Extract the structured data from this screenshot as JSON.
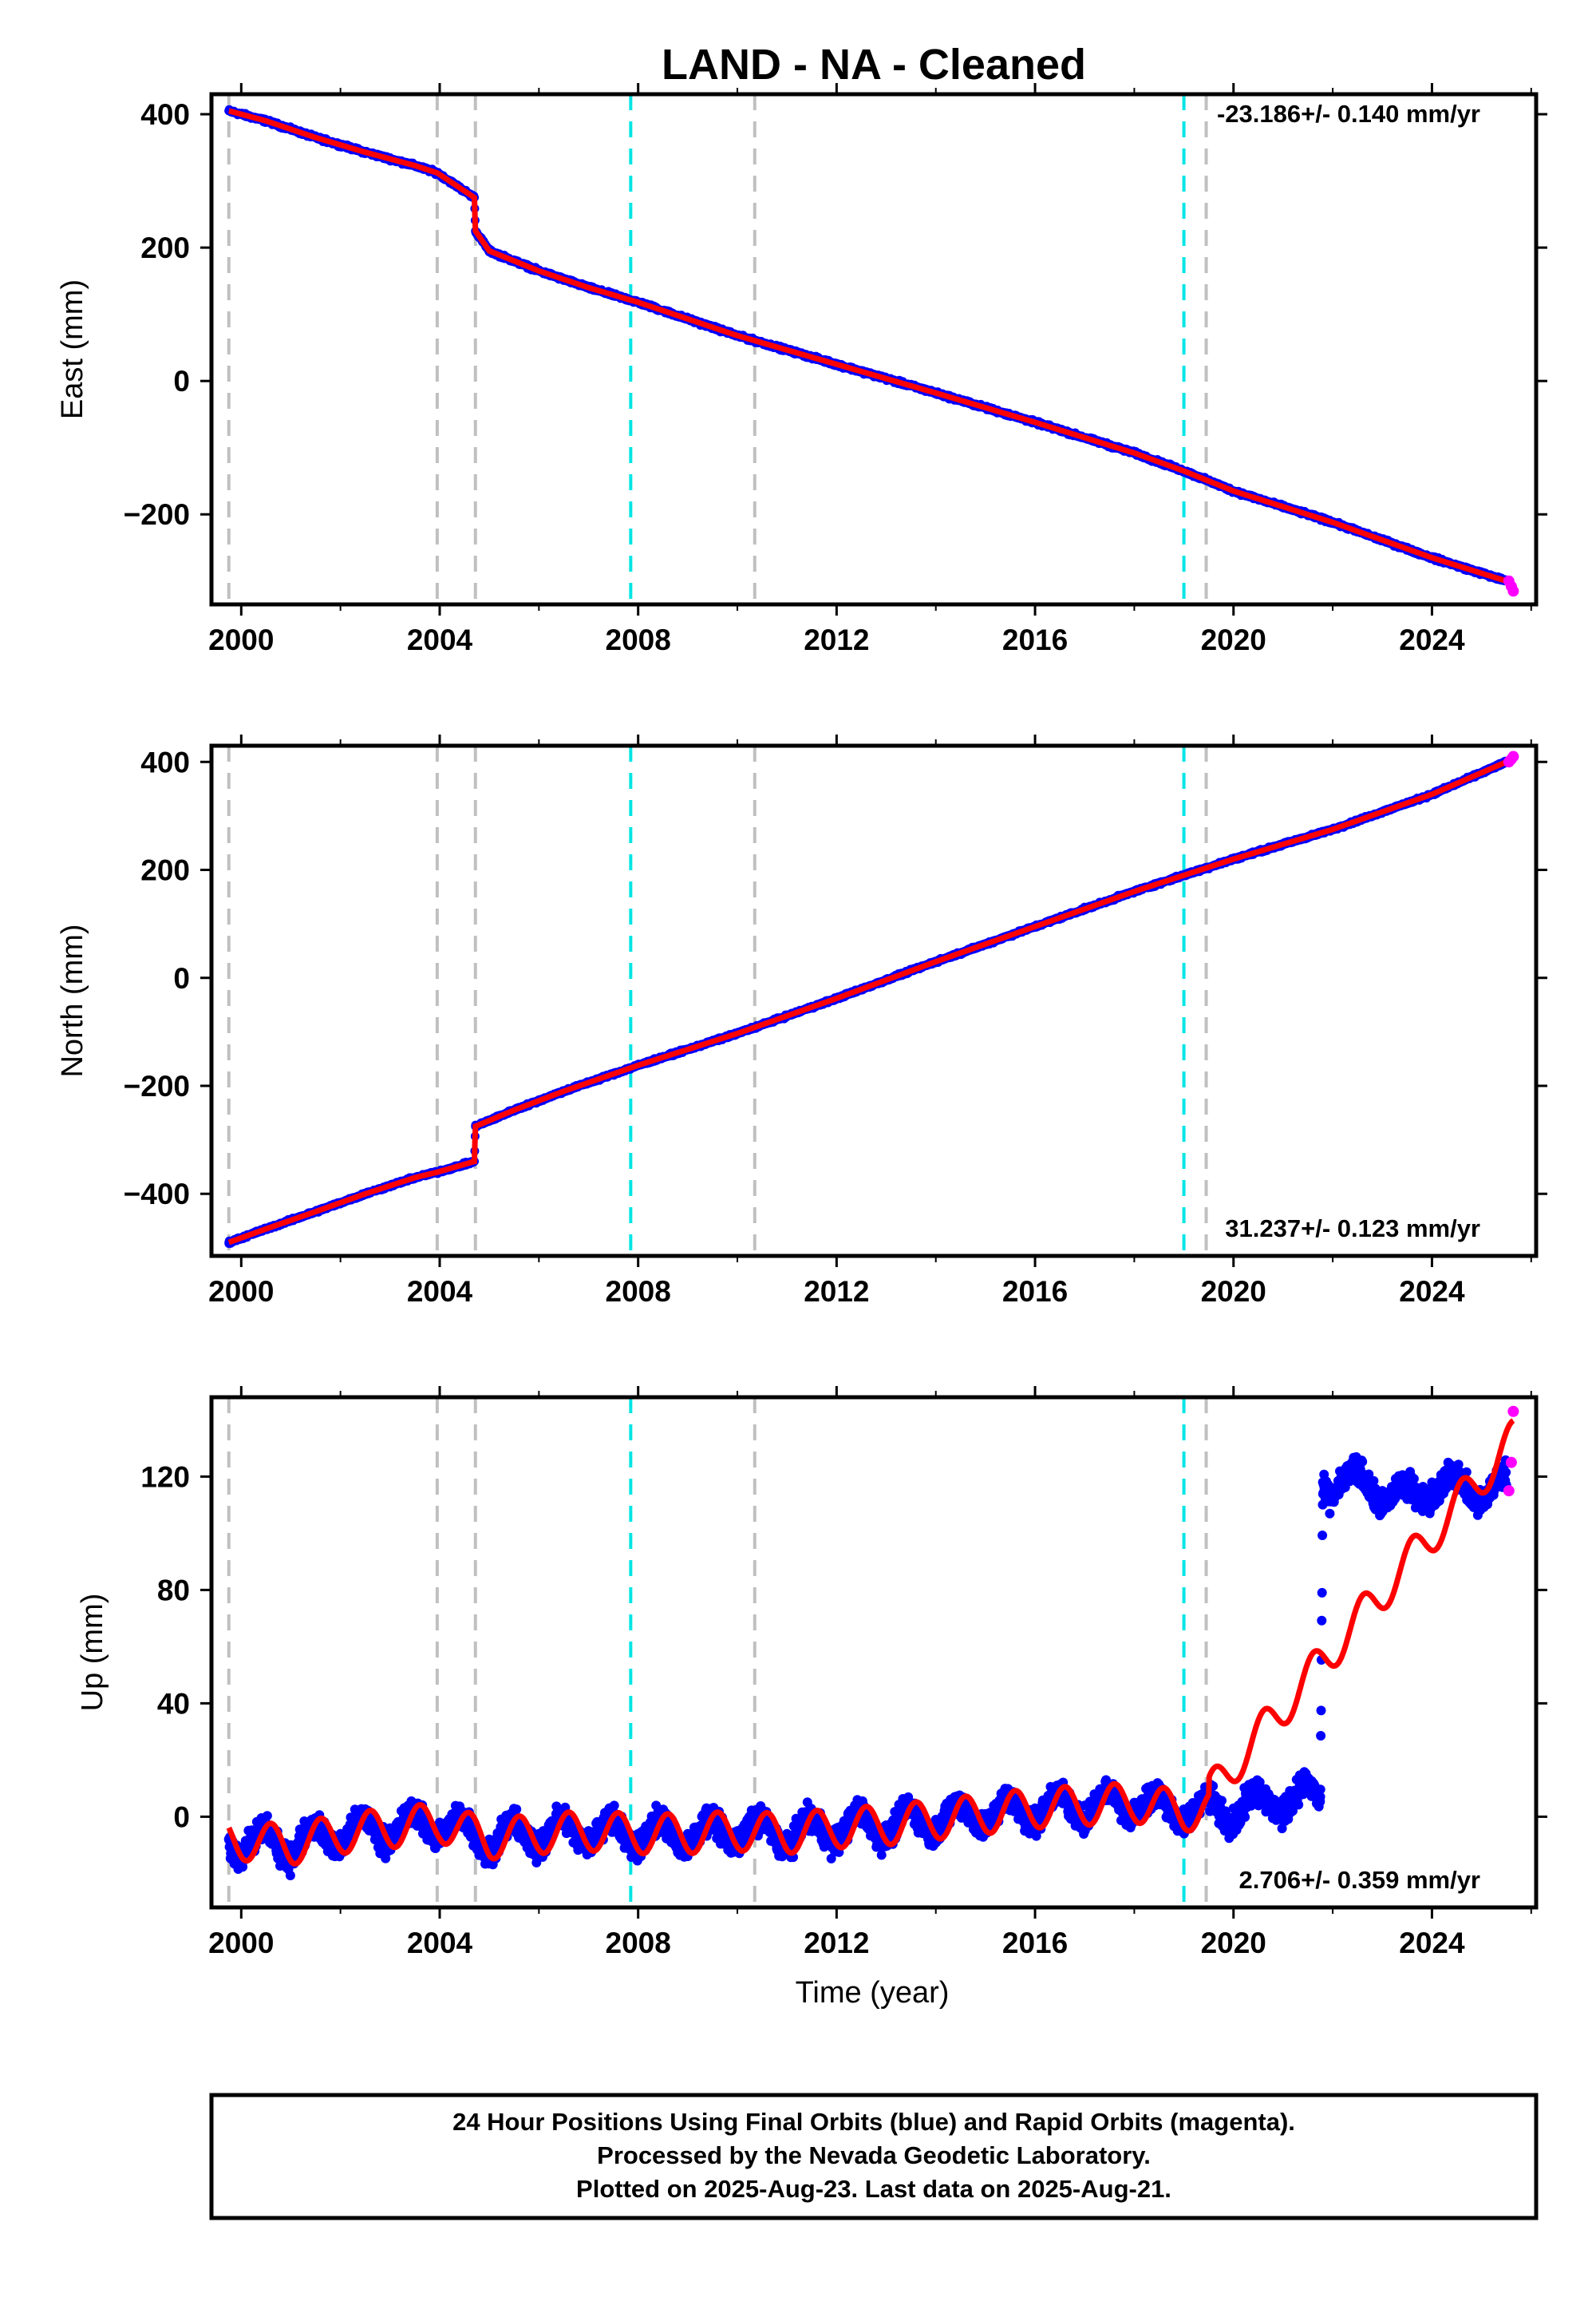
{
  "title": "LAND  - NA - Cleaned",
  "xlabel": "Time (year)",
  "footer": {
    "line1": "24 Hour Positions Using Final Orbits (blue) and Rapid Orbits (magenta).",
    "line2": "Processed by the Nevada Geodetic Laboratory.",
    "line3": "Plotted on 2025-Aug-23. Last data on 2025-Aug-21."
  },
  "colors": {
    "final_orbits": "#0000ff",
    "rapid_orbits": "#ff00ff",
    "model_fit": "#ff0000",
    "equipment_change_line": "#c0c0c0",
    "earthquake_line": "#00e5e5"
  },
  "chart_data": [
    {
      "type": "scatter",
      "panel": "east",
      "ylabel": "East (mm)",
      "rate_label": "-23.186+/- 0.140 mm/yr",
      "xlim": [
        1999.4,
        2026.1
      ],
      "ylim": [
        -335,
        430
      ],
      "xticks": [
        2000,
        2004,
        2008,
        2012,
        2016,
        2020,
        2024
      ],
      "yticks": [
        -200,
        0,
        200,
        400
      ],
      "grey_dashed_lines": [
        1999.75,
        2003.95,
        2004.72,
        2010.35,
        2019.45
      ],
      "cyan_dashed_lines": [
        2007.85,
        2019.0
      ],
      "series": [
        {
          "name": "Final Orbits",
          "x": [
            1999.75,
            2000.5,
            2001.5,
            2002.5,
            2003.5,
            2003.95,
            2004.7,
            2004.72,
            2005.0,
            2006.0,
            2007.0,
            2008.0,
            2010.0,
            2012.0,
            2014.0,
            2016.0,
            2018.0,
            2019.0,
            2020.0,
            2022.0,
            2024.0,
            2025.5
          ],
          "values": [
            405,
            390,
            365,
            343,
            323,
            312,
            275,
            225,
            195,
            165,
            140,
            118,
            68,
            25,
            -18,
            -62,
            -108,
            -135,
            -165,
            -212,
            -265,
            -300
          ]
        },
        {
          "name": "Rapid Orbits",
          "x": [
            2025.55,
            2025.6,
            2025.64
          ],
          "values": [
            -300,
            -308,
            -315
          ]
        }
      ]
    },
    {
      "type": "scatter",
      "panel": "north",
      "ylabel": "North (mm)",
      "rate_label": "31.237+/- 0.123 mm/yr",
      "xlim": [
        1999.4,
        2026.1
      ],
      "ylim": [
        -515,
        430
      ],
      "xticks": [
        2000,
        2004,
        2008,
        2012,
        2016,
        2020,
        2024
      ],
      "yticks": [
        -400,
        -200,
        0,
        200,
        400
      ],
      "grey_dashed_lines": [
        1999.75,
        2003.95,
        2004.72,
        2010.35,
        2019.45
      ],
      "cyan_dashed_lines": [
        2007.85,
        2019.0
      ],
      "series": [
        {
          "name": "Final Orbits",
          "x": [
            1999.75,
            2000.5,
            2001.5,
            2002.5,
            2003.5,
            2003.95,
            2004.7,
            2004.72,
            2005.5,
            2006.5,
            2008.0,
            2010.0,
            2012.0,
            2014.0,
            2016.0,
            2018.0,
            2019.0,
            2020.0,
            2022.0,
            2024.0,
            2025.5
          ],
          "values": [
            -490,
            -465,
            -433,
            -400,
            -370,
            -360,
            -340,
            -275,
            -245,
            -210,
            -162,
            -103,
            -38,
            30,
            95,
            160,
            190,
            220,
            275,
            340,
            400
          ]
        },
        {
          "name": "Rapid Orbits",
          "x": [
            2025.55,
            2025.6,
            2025.64
          ],
          "values": [
            400,
            405,
            410
          ]
        }
      ]
    },
    {
      "type": "scatter",
      "panel": "up",
      "ylabel": "Up (mm)",
      "rate_label": "2.706+/- 0.359 mm/yr",
      "xlim": [
        1999.4,
        2026.1
      ],
      "ylim": [
        -32,
        148
      ],
      "xticks": [
        2000,
        2004,
        2008,
        2012,
        2016,
        2020,
        2024
      ],
      "yticks": [
        0,
        40,
        80,
        120
      ],
      "grey_dashed_lines": [
        1999.75,
        2003.95,
        2004.72,
        2010.35,
        2019.45
      ],
      "cyan_dashed_lines": [
        2007.85,
        2019.0
      ],
      "series": [
        {
          "name": "Final Orbits",
          "x": [
            1999.75,
            2001.0,
            2002.0,
            2003.0,
            2004.0,
            2005.0,
            2006.0,
            2007.0,
            2008.0,
            2009.0,
            2010.0,
            2011.0,
            2012.0,
            2013.0,
            2014.0,
            2015.0,
            2016.0,
            2017.0,
            2018.0,
            2019.0,
            2020.0,
            2021.0,
            2021.75,
            2021.8,
            2022.5,
            2023.0,
            2023.5,
            2024.0,
            2024.5,
            2025.0,
            2025.5
          ],
          "values": [
            -8,
            -10,
            -6,
            -4,
            -2,
            -8,
            -6,
            -5,
            -6,
            -6,
            -5,
            -6,
            -4,
            -3,
            -1,
            1,
            3,
            4,
            5,
            2,
            3,
            6,
            7,
            118,
            118,
            115,
            112,
            118,
            116,
            115,
            117
          ]
        },
        {
          "name": "Rapid Orbits",
          "x": [
            2025.55,
            2025.6,
            2025.64
          ],
          "values": [
            115,
            125,
            143
          ]
        }
      ]
    }
  ]
}
